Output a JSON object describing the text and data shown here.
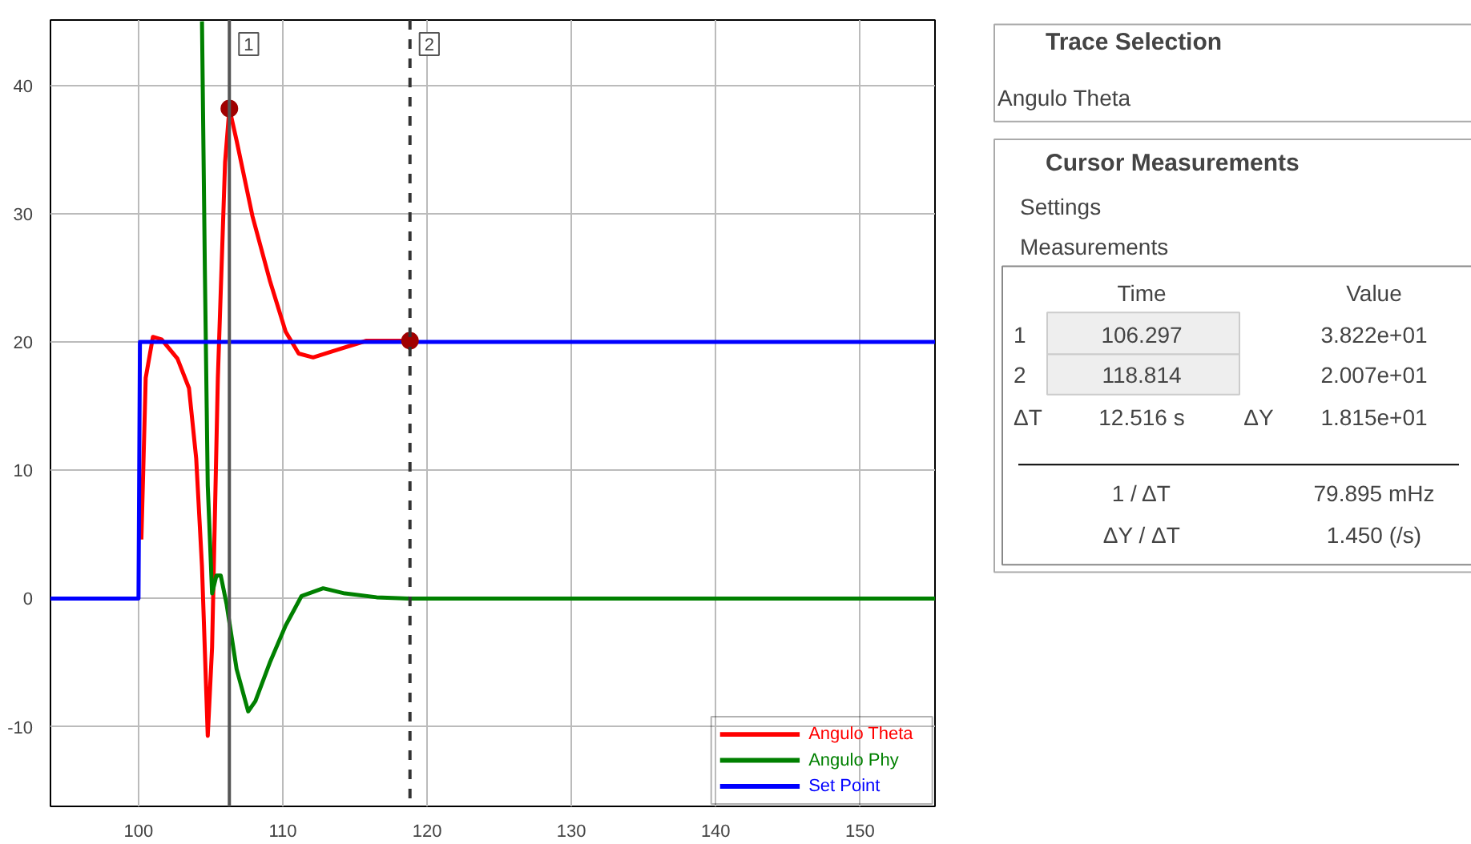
{
  "chart_data": [
    {
      "type": "line",
      "xlim": [
        93.9,
        155.2
      ],
      "ylim": [
        -16.2,
        45.1
      ],
      "xticks": [
        100,
        110,
        120,
        130,
        140,
        150
      ],
      "yticks": [
        -10,
        0,
        10,
        20,
        30,
        40
      ],
      "grid": true,
      "legend": "bottom right",
      "line_style": "solid",
      "series": [
        {
          "name": "Angulo Theta",
          "color": "#ff0000",
          "x": [
            100.2,
            100.5,
            101.0,
            101.6,
            102.7,
            103.5,
            104.0,
            104.4,
            104.8,
            105.1,
            105.5,
            106.0,
            106.3,
            106.8,
            107.9,
            109.1,
            110.2,
            111.1,
            112.1,
            113.5,
            115.8,
            118.8
          ],
          "values": [
            4.6,
            17.2,
            20.4,
            20.2,
            18.7,
            16.4,
            10.9,
            2.5,
            -10.7,
            -3.8,
            17.2,
            34.0,
            38.2,
            35.7,
            29.8,
            24.8,
            20.8,
            19.1,
            18.8,
            19.3,
            20.1,
            20.1
          ]
        },
        {
          "name": "Angulo Phy",
          "color": "#008000",
          "x": [
            104.4,
            104.6,
            104.8,
            105.1,
            105.4,
            105.7,
            106.1,
            106.8,
            107.6,
            108.1,
            109.1,
            110.2,
            111.3,
            112.8,
            114.3,
            116.5,
            118.8,
            155.2
          ],
          "values": [
            45.0,
            25.6,
            8.8,
            0.4,
            1.8,
            1.8,
            -0.4,
            -5.5,
            -8.8,
            -8.0,
            -5.0,
            -2.1,
            0.2,
            0.8,
            0.4,
            0.1,
            0.0,
            0.0
          ]
        },
        {
          "name": "Set Point",
          "color": "#0000ff",
          "x": [
            93.9,
            100.0,
            100.1,
            155.2
          ],
          "values": [
            0,
            0,
            20,
            20
          ]
        },
        {
          "type": "scatter",
          "marker": "circle",
          "color": "#a00000",
          "x": [
            106.297,
            118.814
          ],
          "values": [
            38.2,
            20.1
          ]
        }
      ],
      "ref_lines": [
        {
          "axis": "x",
          "value": 106.297,
          "color": "#555555",
          "line_style": "solid"
        },
        {
          "axis": "x",
          "value": 118.814,
          "color": "#333333",
          "line_style": "dashed"
        }
      ],
      "annotations": [
        {
          "text": "1",
          "x": 106.297,
          "y": 45.1
        },
        {
          "text": "2",
          "x": 118.814,
          "y": 45.1
        }
      ]
    },
    {
      "type": "other",
      "annotations": [
        "Trace Selection",
        "Angulo Theta",
        "Cursor Measurements",
        "Settings",
        "Measurements",
        "Time",
        "Value",
        "1",
        "106.297",
        "3.822e+01",
        "2",
        "118.814",
        "2.007e+01",
        "ΔT",
        "12.516 s",
        "ΔY",
        "1.815e+01",
        "1 / ΔT",
        "79.895 mHz",
        "ΔY / ΔT",
        "1.450 (/s)"
      ]
    }
  ]
}
